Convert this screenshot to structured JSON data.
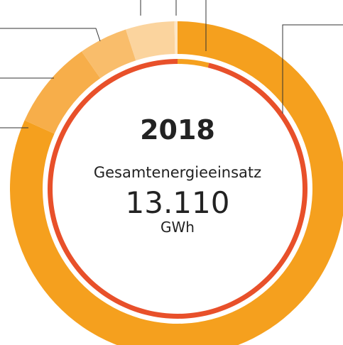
{
  "chart_data": {
    "type": "donut",
    "title": "2018",
    "subtitle": "Gesamtenergieeinsatz",
    "center_value": "13.110",
    "unit": "GWh",
    "rings": [
      {
        "values": [
          81.7,
          8.6,
          4.7,
          4.7,
          0.3
        ],
        "colors": [
          "#f5a01e",
          "#f7ae4a",
          "#f9bd6b",
          "#fbd49e",
          "#fde6c6"
        ]
      },
      {
        "values": [
          3.9,
          96.1
        ],
        "colors": [
          "#f5a01e",
          "#e8502a"
        ]
      }
    ]
  }
}
